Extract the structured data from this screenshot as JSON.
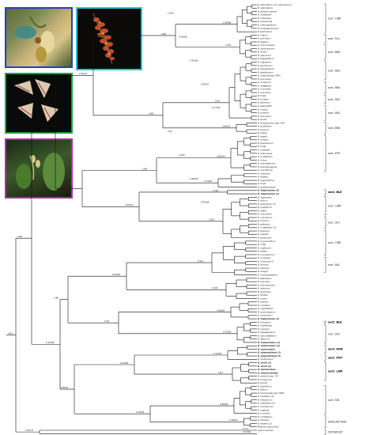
{
  "photos": [
    {
      "name": "photo-blue",
      "border": "#2c3fb8"
    },
    {
      "name": "photo-cyan",
      "border": "#22c7d8"
    },
    {
      "name": "photo-green",
      "border": "#1aa83a"
    },
    {
      "name": "photo-magenta",
      "border": "#b02bb0"
    }
  ],
  "taxa": [
    {
      "label": "B. albociliatum var. weiminianum",
      "color": "#222"
    },
    {
      "label": "B. albociliatum",
      "color": "#222"
    },
    {
      "label": "B. pectens-veneris",
      "color": "#222"
    },
    {
      "label": "B. flavescens",
      "color": "#222"
    },
    {
      "label": "B. tahanense",
      "color": "#222"
    },
    {
      "label": "B. taiwanense",
      "color": "#222"
    },
    {
      "label": "B. melanoglossum",
      "color": "#222"
    },
    {
      "label": "B. fimbriperianthium",
      "color": "#222"
    },
    {
      "label": "B. pectinatum",
      "color": "#222"
    },
    {
      "label": "B. luteum",
      "color": "#222"
    },
    {
      "label": "B. plumatum",
      "color": "#222"
    },
    {
      "label": "B. lepidum",
      "color": "#222"
    },
    {
      "label": "B. rhizomatosum",
      "color": "#222"
    },
    {
      "label": "B. retusiusculum",
      "color": "#222"
    },
    {
      "label": "B. farreri",
      "color": "#222"
    },
    {
      "label": "B. japonicum",
      "color": "#222"
    },
    {
      "label": "B. dasypetalum",
      "color": "#222"
    },
    {
      "label": "B. lingulatum",
      "color": "#222"
    },
    {
      "label": "B. gracillimum",
      "color": "#222"
    },
    {
      "label": "B. pteroglossum",
      "color": "#222"
    },
    {
      "label": "B. spathulatum",
      "color": "#222"
    },
    {
      "label": "B. medusae   sect. BRA",
      "color": "#222"
    },
    {
      "label": "B. gymnopus",
      "color": "#222"
    },
    {
      "label": "B. corallinum",
      "color": "#222"
    },
    {
      "label": "B. sutepense",
      "color": "#222"
    },
    {
      "label": "B. micholitzii",
      "color": "#222"
    },
    {
      "label": "B. tortuosum",
      "color": "#222"
    },
    {
      "label": "B. tixieri",
      "color": "#222"
    },
    {
      "label": "B. forrestii",
      "color": "#222"
    },
    {
      "label": "B. psychoon",
      "color": "#222"
    },
    {
      "label": "B. eberhardtii",
      "color": "#222"
    },
    {
      "label": "B. ovatum",
      "color": "#222"
    },
    {
      "label": "B. putidum",
      "color": "#222"
    },
    {
      "label": "B. ecornutum",
      "color": "#222"
    },
    {
      "label": "B. levatii",
      "color": "#222"
    },
    {
      "label": "B. emarginatum   sect. RHY",
      "color": "#222"
    },
    {
      "label": "B. guttulatum",
      "color": "#222"
    },
    {
      "label": "B. tigrinum",
      "color": "#222"
    },
    {
      "label": "B. baileyi",
      "color": "#222"
    },
    {
      "label": "B. wightii",
      "color": "#222"
    },
    {
      "label": "B. lucidum",
      "color": "#222"
    },
    {
      "label": "B. leopardinum",
      "color": "#222"
    },
    {
      "label": "B. triste",
      "color": "#222"
    },
    {
      "label": "B. crassipes",
      "color": "#222"
    },
    {
      "label": "B. sikkimense",
      "color": "#222"
    },
    {
      "label": "B. umbellatum",
      "color": "#222"
    },
    {
      "label": "B. hirtum",
      "color": "#222"
    },
    {
      "label": "B. odoratissimum",
      "color": "#222"
    },
    {
      "label": "B. guangdongense",
      "color": "#222"
    },
    {
      "label": "B. cariniflorum",
      "color": "#222"
    },
    {
      "label": "B. ambrosia",
      "color": "#222"
    },
    {
      "label": "B. reptans",
      "color": "#222"
    },
    {
      "label": "B. pugioniforme",
      "color": "#222"
    },
    {
      "label": "B. fordii",
      "color": "#222"
    },
    {
      "label": "B. gongshanense",
      "color": "#222"
    },
    {
      "label": "B. blepharistes (2)",
      "color": "#1a1ab0"
    },
    {
      "label": "B. blepharistes (1)",
      "color": "#1a1ab0"
    },
    {
      "label": "B. nigrescens",
      "color": "#222"
    },
    {
      "label": "B. pictum",
      "color": "#222"
    },
    {
      "label": "B. pectinatum (1)",
      "color": "#222"
    },
    {
      "label": "B. longiflorum",
      "color": "#222"
    },
    {
      "label": "B. affine",
      "color": "#222"
    },
    {
      "label": "B. maculatum",
      "color": "#222"
    },
    {
      "label": "B. macrantum",
      "color": "#222"
    },
    {
      "label": "B. pumilum",
      "color": "#222"
    },
    {
      "label": "B. gibbosum",
      "color": "#222"
    },
    {
      "label": "B. umbellatum (2)",
      "color": "#222"
    },
    {
      "label": "B. dayanum",
      "color": "#222"
    },
    {
      "label": "B. nipondii",
      "color": "#222"
    },
    {
      "label": "B. purpureum",
      "color": "#222"
    },
    {
      "label": "B. hymenanthum",
      "color": "#222"
    },
    {
      "label": "B. rolfei",
      "color": "#222"
    },
    {
      "label": "B. andersonii",
      "color": "#222"
    },
    {
      "label": "B. repens",
      "color": "#222"
    },
    {
      "label": "B. inconspicuum",
      "color": "#222"
    },
    {
      "label": "B. hirundinis",
      "color": "#222"
    },
    {
      "label": "B. ambrosia (2)",
      "color": "#222"
    },
    {
      "label": "B. pinicola",
      "color": "#222"
    },
    {
      "label": "B. alsiosum",
      "color": "#222"
    },
    {
      "label": "B. tianguii",
      "color": "#222"
    },
    {
      "label": "B. violaceolabellum",
      "color": "#222"
    },
    {
      "label": "B. depressum",
      "color": "#222"
    },
    {
      "label": "B. hamatum",
      "color": "#222"
    },
    {
      "label": "B. nematocaulon",
      "color": "#222"
    },
    {
      "label": "B. shanicum",
      "color": "#222"
    },
    {
      "label": "B. secundum",
      "color": "#222"
    },
    {
      "label": "B. fischeri",
      "color": "#222"
    },
    {
      "label": "B. bicolor",
      "color": "#222"
    },
    {
      "label": "B. bisetum",
      "color": "#222"
    },
    {
      "label": "B. candidum",
      "color": "#222"
    },
    {
      "label": "B. nigripetalum",
      "color": "#222"
    },
    {
      "label": "B. quadrangulum",
      "color": "#222"
    },
    {
      "label": "B. racemosum",
      "color": "#222"
    },
    {
      "label": "B. blepharistes (3)",
      "color": "#1a1ab0"
    },
    {
      "label": "B. dickasonii",
      "color": "#222"
    },
    {
      "label": "B. shweliense",
      "color": "#222"
    },
    {
      "label": "B. insulsum",
      "color": "#222"
    },
    {
      "label": "B. elassoglossum",
      "color": "#222"
    },
    {
      "label": "B. subumbellatum",
      "color": "#222"
    },
    {
      "label": "B. affine (2)",
      "color": "#222"
    },
    {
      "label": "B. hookerianum (1)",
      "color": "#18a018"
    },
    {
      "label": "B. hookerianum (2)",
      "color": "#18a018"
    },
    {
      "label": "B. yunnanense",
      "color": "#18a018"
    },
    {
      "label": "B. phaenanthum (1)",
      "color": "#a018a0"
    },
    {
      "label": "B. phaenanthum (2)",
      "color": "#a018a0"
    },
    {
      "label": "B. rubiginosum",
      "color": "#222"
    },
    {
      "label": "B. cheiri (1)",
      "color": "#18b8c8"
    },
    {
      "label": "B. cheiri (2)",
      "color": "#18b8c8"
    },
    {
      "label": "B. lemniscatum",
      "color": "#18b8c8"
    },
    {
      "label": "B. lemniscatoides",
      "color": "#18b8c8"
    },
    {
      "label": "B. wallichii   sect. TRI",
      "color": "#222"
    },
    {
      "label": "B. tianguii (2)",
      "color": "#222"
    },
    {
      "label": "B. levinei",
      "color": "#222"
    },
    {
      "label": "B. disciflorum",
      "color": "#222"
    },
    {
      "label": "B. elatum",
      "color": "#222"
    },
    {
      "label": "B. bootanoides   sect. MON",
      "color": "#222"
    },
    {
      "label": "B. candidum (2)",
      "color": "#222"
    },
    {
      "label": "B. khasyanum",
      "color": "#222"
    },
    {
      "label": "B. nigrescens (2)",
      "color": "#222"
    },
    {
      "label": "B. sumatranum",
      "color": "#222"
    },
    {
      "label": "B. capense",
      "color": "#222"
    },
    {
      "label": "B. humblotii",
      "color": "#222"
    },
    {
      "label": "B. variegatum",
      "color": "#222"
    },
    {
      "label": "B. falcatum",
      "color": "#222"
    },
    {
      "label": "B. reptans (2)",
      "color": "#222"
    },
    {
      "label": "Masaria holttumiana",
      "color": "#222"
    },
    {
      "label": "Liparis nervosa",
      "color": "#222"
    }
  ],
  "supports": [
    {
      "label": "0.69/88"
    },
    {
      "label": "0.95/-"
    },
    {
      "label": "1/95"
    },
    {
      "label": "0.96/91"
    },
    {
      "label": "0.86/59"
    },
    {
      "label": "0.73/62"
    },
    {
      "label": "0.82/-"
    },
    {
      "label": "0.95/-"
    },
    {
      "label": "0.91/-"
    },
    {
      "label": "1/100"
    },
    {
      "label": "0.96/84"
    },
    {
      "label": "0.97/62"
    },
    {
      "label": "0.93/64"
    },
    {
      "label": "1/97"
    },
    {
      "label": "0.89/89"
    },
    {
      "label": "0.84/64"
    },
    {
      "label": "0.71/-"
    },
    {
      "label": "0.97/64"
    },
    {
      "label": "1/86"
    },
    {
      "label": "1/98"
    },
    {
      "label": "1/99"
    },
    {
      "label": "0.99/90"
    },
    {
      "label": "0.53/61"
    },
    {
      "label": "1/79"
    },
    {
      "label": "0.54/65"
    },
    {
      "label": "0.94/94"
    },
    {
      "label": "0.99/70"
    },
    {
      "label": "1/73"
    },
    {
      "label": "1/80"
    },
    {
      "label": "0.98/94"
    },
    {
      "label": "0.78/90"
    },
    {
      "label": "0.95/88"
    },
    {
      "label": "1/96"
    },
    {
      "label": "0.92/73"
    },
    {
      "label": "1/81"
    },
    {
      "label": "1/100"
    },
    {
      "label": "0.99/98"
    },
    {
      "label": "0.95/99"
    },
    {
      "label": "0.64/97"
    },
    {
      "label": "0.77/94"
    },
    {
      "label": "1/51"
    },
    {
      "label": "1/100"
    },
    {
      "label": "0.98/98"
    },
    {
      "label": "0.99/88"
    }
  ],
  "sections": [
    {
      "label": "sect. CIRR",
      "bold": false
    },
    {
      "label": "sect. PLU",
      "bold": false
    },
    {
      "label": "sect. BRA",
      "bold": false
    },
    {
      "label": "sect. DES",
      "bold": false
    },
    {
      "label": "sect. BRU",
      "bold": false
    },
    {
      "label": "sect. RHY",
      "bold": false
    },
    {
      "label": "sect. DES",
      "bold": false
    },
    {
      "label": "sect. BRA",
      "bold": false
    },
    {
      "label": "sect. EPH",
      "bold": false
    },
    {
      "label": "sect. BLE",
      "bold": true
    },
    {
      "label": "sect. CIRR",
      "bold": false
    },
    {
      "label": "sect. LEO",
      "bold": false
    },
    {
      "label": "sect. CIRR",
      "bold": false
    },
    {
      "label": "sect. RAC",
      "bold": false
    },
    {
      "label": "sect. BLE",
      "bold": true
    },
    {
      "label": "sect. SES",
      "bold": false
    },
    {
      "label": "sect. HOR",
      "bold": true
    },
    {
      "label": "sect. PHY",
      "bold": true
    },
    {
      "label": "sect. LEM",
      "bold": true
    },
    {
      "label": "sect. SIN",
      "bold": false
    },
    {
      "label": "AFRICAN TAXA",
      "bold": false
    },
    {
      "label": "OUTGROUP",
      "bold": false
    }
  ]
}
